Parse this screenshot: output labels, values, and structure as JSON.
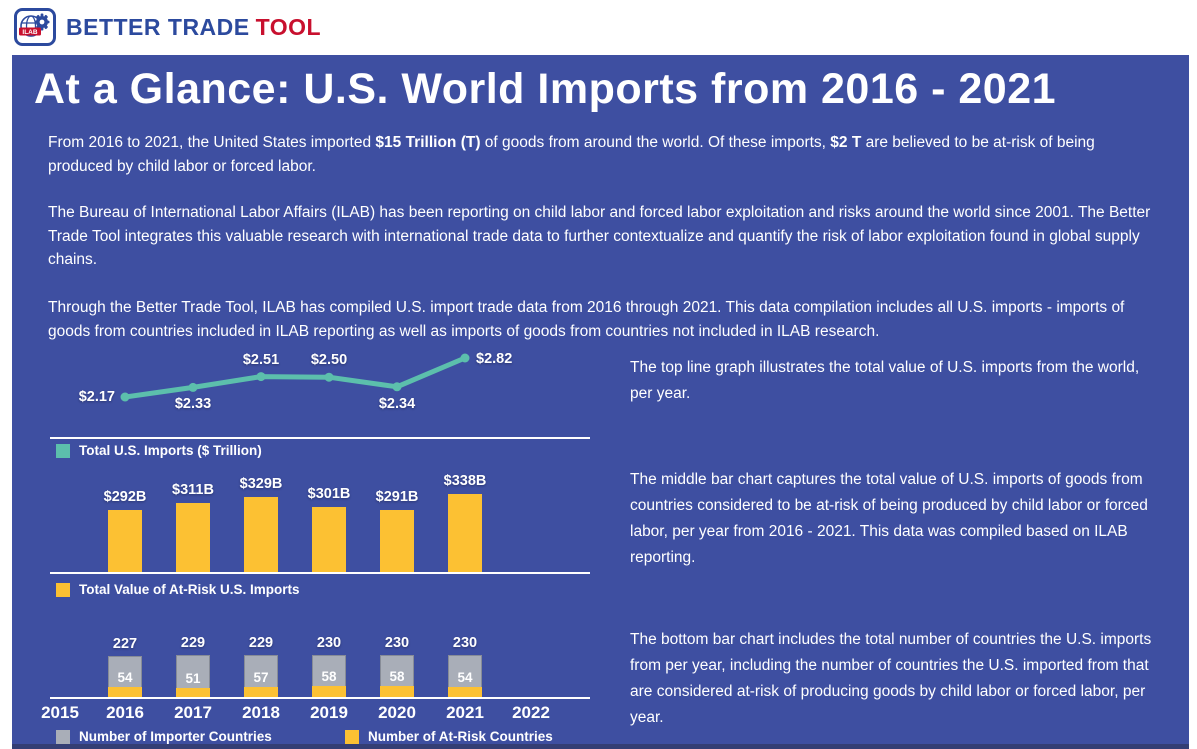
{
  "header": {
    "brand_primary": "BETTER TRADE",
    "brand_accent": "TOOL",
    "logo_icon": "ilab-globe-gear-icon"
  },
  "page": {
    "title": "At a Glance: U.S. World Imports from 2016 - 2021",
    "intro": {
      "t1": "From 2016 to 2021, the United States imported ",
      "b1": "$15 Trillion (T)",
      "t2": " of goods from around the world. Of these imports, ",
      "b2": "$2 T",
      "t3": " are believed to be at-risk of being produced by child labor or forced labor."
    },
    "para2": "The Bureau of International Labor Affairs (ILAB) has been reporting on child labor and forced labor exploitation and risks around the world since 2001. The Better Trade Tool integrates this valuable research with international trade data to further contextualize and quantify the risk of labor exploitation found in global supply chains.",
    "para3": "Through the Better Trade Tool, ILAB has compiled U.S. import trade data from 2016 through 2021. This data compilation includes all U.S. imports - imports of goods from countries included in ILAB reporting as well as imports of goods from countries not included in ILAB research."
  },
  "descriptions": {
    "line": "The top line graph illustrates the total value of U.S. imports from the world, per year.",
    "middle": "The middle bar chart captures the total value of U.S. imports of goods from countries considered to be at-risk of being produced by child labor or forced labor, per year from 2016 - 2021. This data was compiled based on ILAB reporting.",
    "bottom": "The bottom bar chart includes the total number of countries the U.S. imports from per year, including the number of countries the U.S. imported from that are considered at-risk of producing goods by child labor or forced labor, per year."
  },
  "chart_data": [
    {
      "type": "line",
      "title": "Total U.S. Imports per year",
      "categories": [
        "2016",
        "2017",
        "2018",
        "2019",
        "2020",
        "2021"
      ],
      "values": [
        2.17,
        2.33,
        2.51,
        2.5,
        2.34,
        2.82
      ],
      "labels": [
        "$2.17",
        "$2.33",
        "$2.51",
        "$2.50",
        "$2.34",
        "$2.82"
      ],
      "label_positions": [
        "left",
        "below",
        "above",
        "above",
        "below",
        "right"
      ],
      "legend": "Total U.S. Imports ($ Trillion)",
      "color": "#5CBFAC",
      "unit": "$ Trillion",
      "grid": false,
      "legend_position": "bottom-left"
    },
    {
      "type": "bar",
      "title": "Total Value of At-Risk U.S. Imports per year",
      "categories": [
        "2016",
        "2017",
        "2018",
        "2019",
        "2020",
        "2021"
      ],
      "values": [
        292,
        311,
        329,
        301,
        291,
        338
      ],
      "labels": [
        "$292B",
        "$311B",
        "$329B",
        "$301B",
        "$291B",
        "$338B"
      ],
      "legend": "Total Value of At-Risk U.S. Imports",
      "color": "#FCC133",
      "unit": "$ Billion",
      "ylim": [
        115,
        338
      ],
      "grid": false,
      "legend_position": "bottom-left"
    },
    {
      "type": "bar",
      "title": "Number of Importer and At-Risk Countries per year",
      "categories": [
        "2016",
        "2017",
        "2018",
        "2019",
        "2020",
        "2021"
      ],
      "series": [
        {
          "name": "Number of Importer Countries",
          "color": "#A9AEB8",
          "values": [
            227,
            229,
            229,
            230,
            230,
            230
          ]
        },
        {
          "name": "Number of At-Risk Countries",
          "color": "#FCC133",
          "values": [
            54,
            51,
            57,
            58,
            58,
            54
          ]
        }
      ],
      "axis_years": [
        "2015",
        "2016",
        "2017",
        "2018",
        "2019",
        "2020",
        "2021",
        "2022"
      ],
      "ylim": [
        0,
        230
      ],
      "grid": false,
      "legend_position": "bottom"
    }
  ],
  "colors": {
    "panel_bg": "#3E4FA1",
    "footer_bar": "#343E74",
    "teal": "#5CBFAC",
    "yellow": "#FCC133",
    "gray": "#A9AEB8",
    "brand_blue": "#2C4A9E",
    "brand_red": "#C8102E",
    "text": "#FFFFFF"
  }
}
